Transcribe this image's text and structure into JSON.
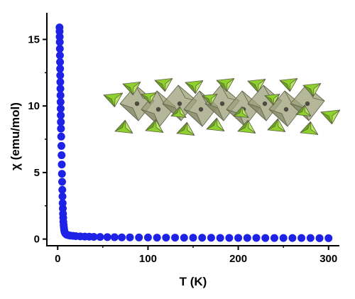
{
  "chart_data": {
    "type": "scatter",
    "xlabel": "T (K)",
    "ylabel": "χ (emu/mol)",
    "xlim": [
      -12,
      312
    ],
    "ylim": [
      -0.5,
      17.0
    ],
    "xticks": [
      0,
      100,
      200,
      300
    ],
    "yticks": [
      0,
      5,
      10,
      15
    ],
    "grid": false,
    "legend": "none",
    "marker_color": "#1e22e6",
    "series": [
      {
        "points": [
          {
            "x": 2.0,
            "y": 15.9
          },
          {
            "x": 2.1,
            "y": 15.6
          },
          {
            "x": 2.2,
            "y": 15.2
          },
          {
            "x": 2.3,
            "y": 14.8
          },
          {
            "x": 2.4,
            "y": 14.3
          },
          {
            "x": 2.5,
            "y": 13.8
          },
          {
            "x": 2.6,
            "y": 13.3
          },
          {
            "x": 2.7,
            "y": 12.8
          },
          {
            "x": 2.8,
            "y": 12.3
          },
          {
            "x": 2.9,
            "y": 11.8
          },
          {
            "x": 3.0,
            "y": 11.3
          },
          {
            "x": 3.1,
            "y": 10.8
          },
          {
            "x": 3.2,
            "y": 10.3
          },
          {
            "x": 3.3,
            "y": 9.8
          },
          {
            "x": 3.4,
            "y": 9.3
          },
          {
            "x": 3.5,
            "y": 8.8
          },
          {
            "x": 3.6,
            "y": 8.3
          },
          {
            "x": 3.9,
            "y": 7.7
          },
          {
            "x": 4.1,
            "y": 7.0
          },
          {
            "x": 4.3,
            "y": 6.3
          },
          {
            "x": 4.5,
            "y": 5.6
          },
          {
            "x": 4.7,
            "y": 4.9
          },
          {
            "x": 4.9,
            "y": 4.3
          },
          {
            "x": 5.1,
            "y": 3.7
          },
          {
            "x": 5.3,
            "y": 3.2
          },
          {
            "x": 5.5,
            "y": 2.7
          },
          {
            "x": 5.7,
            "y": 2.3
          },
          {
            "x": 5.9,
            "y": 1.9
          },
          {
            "x": 6.1,
            "y": 1.6
          },
          {
            "x": 6.3,
            "y": 1.3
          },
          {
            "x": 6.6,
            "y": 1.05
          },
          {
            "x": 6.9,
            "y": 0.85
          },
          {
            "x": 7.2,
            "y": 0.68
          },
          {
            "x": 7.6,
            "y": 0.55
          },
          {
            "x": 8.2,
            "y": 0.45
          },
          {
            "x": 9.0,
            "y": 0.38
          },
          {
            "x": 10.0,
            "y": 0.33
          },
          {
            "x": 12.0,
            "y": 0.29
          },
          {
            "x": 14.0,
            "y": 0.26
          },
          {
            "x": 17.0,
            "y": 0.24
          },
          {
            "x": 20.0,
            "y": 0.22
          },
          {
            "x": 25.0,
            "y": 0.2
          },
          {
            "x": 30.0,
            "y": 0.19
          },
          {
            "x": 35.0,
            "y": 0.18
          },
          {
            "x": 40.0,
            "y": 0.17
          },
          {
            "x": 47.0,
            "y": 0.16
          },
          {
            "x": 55.0,
            "y": 0.15
          },
          {
            "x": 63.0,
            "y": 0.14
          },
          {
            "x": 71.0,
            "y": 0.13
          },
          {
            "x": 80.0,
            "y": 0.13
          },
          {
            "x": 90.0,
            "y": 0.12
          },
          {
            "x": 100.0,
            "y": 0.12
          },
          {
            "x": 110.0,
            "y": 0.11
          },
          {
            "x": 120.0,
            "y": 0.11
          },
          {
            "x": 130.0,
            "y": 0.11
          },
          {
            "x": 140.0,
            "y": 0.1
          },
          {
            "x": 150.0,
            "y": 0.1
          },
          {
            "x": 160.0,
            "y": 0.1
          },
          {
            "x": 170.0,
            "y": 0.1
          },
          {
            "x": 180.0,
            "y": 0.09
          },
          {
            "x": 190.0,
            "y": 0.09
          },
          {
            "x": 200.0,
            "y": 0.09
          },
          {
            "x": 210.0,
            "y": 0.09
          },
          {
            "x": 220.0,
            "y": 0.09
          },
          {
            "x": 230.0,
            "y": 0.08
          },
          {
            "x": 240.0,
            "y": 0.08
          },
          {
            "x": 250.0,
            "y": 0.08
          },
          {
            "x": 260.0,
            "y": 0.08
          },
          {
            "x": 270.0,
            "y": 0.08
          },
          {
            "x": 280.0,
            "y": 0.08
          },
          {
            "x": 290.0,
            "y": 0.07
          },
          {
            "x": 300.0,
            "y": 0.07
          }
        ]
      }
    ],
    "inset": {
      "content": "crystal structure: chain of edge-sharing polyhedra with tetrahedral groups",
      "colors": {
        "octahedra": "#9c9f7a",
        "tetrahedra": "#8fd12c",
        "metal_atoms": "#4a4a40"
      }
    }
  }
}
